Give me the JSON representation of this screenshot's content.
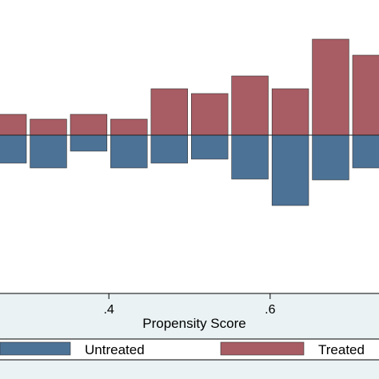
{
  "chart_data": {
    "type": "bar",
    "orientation": "mirrored",
    "xlabel": "Propensity Score",
    "ylabel": "",
    "xlim": [
      0.265,
      0.735
    ],
    "ylim": [
      -1.0,
      0.6
    ],
    "grid": false,
    "legend_position": "bottom",
    "x_ticks": [
      {
        "value": 0.4,
        "label": ".4"
      },
      {
        "value": 0.6,
        "label": ".6"
      }
    ],
    "bin_width": 0.05,
    "series": [
      {
        "name": "Untreated",
        "color": "#4c7296",
        "direction": "down",
        "bins": [
          {
            "x": 0.25,
            "value": 0.175
          },
          {
            "x": 0.3,
            "value": 0.205
          },
          {
            "x": 0.35,
            "value": 0.1
          },
          {
            "x": 0.4,
            "value": 0.205
          },
          {
            "x": 0.45,
            "value": 0.175
          },
          {
            "x": 0.5,
            "value": 0.15
          },
          {
            "x": 0.55,
            "value": 0.275
          },
          {
            "x": 0.6,
            "value": 0.44
          },
          {
            "x": 0.65,
            "value": 0.28
          },
          {
            "x": 0.7,
            "value": 0.205
          }
        ]
      },
      {
        "name": "Treated",
        "color": "#a85c63",
        "direction": "up",
        "bins": [
          {
            "x": 0.25,
            "value": 0.13
          },
          {
            "x": 0.3,
            "value": 0.1
          },
          {
            "x": 0.35,
            "value": 0.13
          },
          {
            "x": 0.4,
            "value": 0.1
          },
          {
            "x": 0.45,
            "value": 0.29
          },
          {
            "x": 0.5,
            "value": 0.26
          },
          {
            "x": 0.55,
            "value": 0.37
          },
          {
            "x": 0.6,
            "value": 0.29
          },
          {
            "x": 0.65,
            "value": 0.6
          },
          {
            "x": 0.7,
            "value": 0.5
          }
        ]
      }
    ],
    "legend": [
      {
        "label": "Untreated",
        "color": "#4c7296"
      },
      {
        "label": "Treated",
        "color": "#a85c63"
      }
    ]
  }
}
